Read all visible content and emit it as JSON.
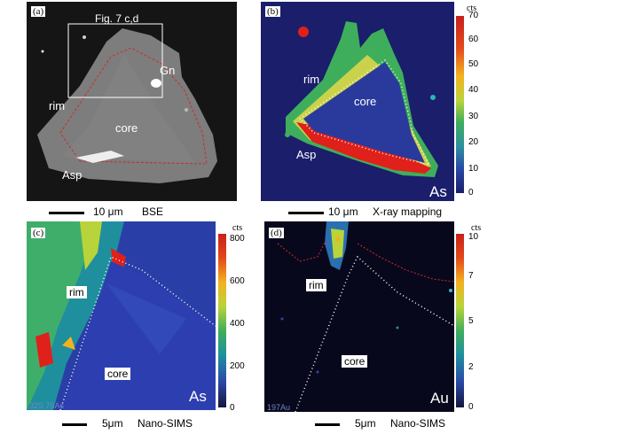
{
  "panels": {
    "a": {
      "letter": "(a)",
      "fig_ref": "Fig. 7 c,d",
      "labels": {
        "gn": "Gn",
        "rim": "rim",
        "core": "core",
        "asp": "Asp"
      },
      "scale": "10 μm",
      "mode": "BSE"
    },
    "b": {
      "letter": "(b)",
      "labels": {
        "rim": "rim",
        "core": "core",
        "asp": "Asp",
        "element": "As"
      },
      "scale": "10 μm",
      "mode": "X-ray mapping",
      "colorbar": {
        "title": "cts",
        "ticks": [
          "70",
          "60",
          "50",
          "40",
          "30",
          "20",
          "10",
          "0"
        ]
      }
    },
    "c": {
      "letter": "(c)",
      "labels": {
        "rim": "rim",
        "core": "core",
        "element": "As",
        "isotopes": "32S 75As"
      },
      "scale": "5μm",
      "mode": "Nano-SIMS",
      "colorbar": {
        "title": "cts",
        "ticks": [
          "800",
          "600",
          "400",
          "200",
          "0"
        ]
      }
    },
    "d": {
      "letter": "(d)",
      "labels": {
        "rim": "rim",
        "core": "core",
        "element": "Au",
        "isotopes": "197Au"
      },
      "scale": "5μm",
      "mode": "Nano-SIMS",
      "colorbar": {
        "title": "cts",
        "ticks": [
          "10",
          "7",
          "5",
          "2",
          "0"
        ]
      }
    }
  },
  "colors": {
    "heat_high": "#e0201a",
    "heat_low": "#1a1e6b",
    "boundary_dots": "#ffffff",
    "bse_rim_line": "#cc2b2b"
  }
}
